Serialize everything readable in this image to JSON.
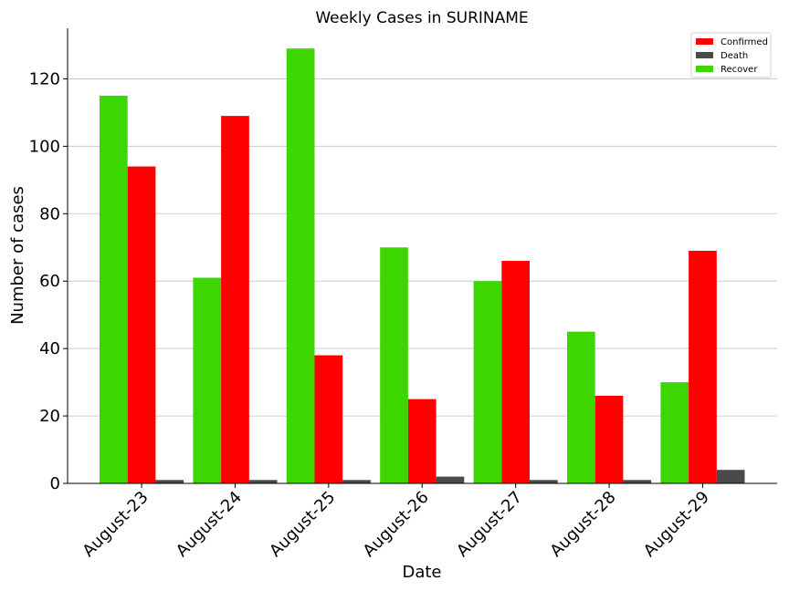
{
  "chart_data": {
    "type": "bar",
    "title": "Weekly Cases in SURINAME",
    "xlabel": "Date",
    "ylabel": "Number of cases",
    "categories": [
      "August-23",
      "August-24",
      "August-25",
      "August-26",
      "August-27",
      "August-28",
      "August-29"
    ],
    "series": [
      {
        "name": "Recover",
        "color": "#3dd600",
        "values": [
          115,
          61,
          129,
          70,
          60,
          45,
          30
        ]
      },
      {
        "name": "Confirmed",
        "color": "#ff0000",
        "values": [
          94,
          109,
          38,
          25,
          66,
          26,
          69
        ]
      },
      {
        "name": "Death",
        "color": "#4a4a4a",
        "values": [
          1,
          1,
          1,
          2,
          1,
          1,
          4
        ]
      }
    ],
    "legend_order": [
      "Confirmed",
      "Death",
      "Recover"
    ],
    "ylim": [
      0,
      135
    ],
    "yticks": [
      0,
      20,
      40,
      60,
      80,
      100,
      120
    ],
    "grid": "horizontal",
    "legend_position": "top-right"
  }
}
